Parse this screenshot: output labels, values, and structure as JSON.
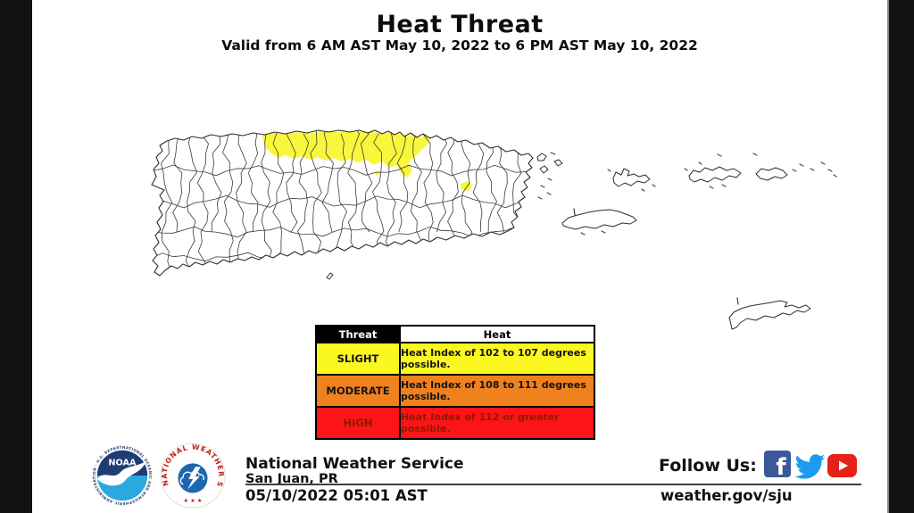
{
  "title": "Heat Threat",
  "subtitle": "Valid from 6 AM AST May 10, 2022 to 6 PM AST May 10, 2022",
  "legend": {
    "threat_header": "Threat",
    "heat_header": "Heat",
    "rows": [
      {
        "label": "SLIGHT",
        "text": "Heat Index of 102 to 107 degrees possible.",
        "bg": "#FBF821",
        "fg": "#141414"
      },
      {
        "label": "MODERATE",
        "text": "Heat Index of 108 to 111 degrees possible.",
        "bg": "#F0811F",
        "fg": "#141414"
      },
      {
        "label": "HIGH",
        "text": "Heat Index of 112 or greater possible.",
        "bg": "#FB1418",
        "fg": "#8F1A00"
      }
    ]
  },
  "map": {
    "slight_color": "#F8F73C",
    "outline_color": "#2E2E2E"
  },
  "footer": {
    "agency": "National Weather Service",
    "office": "San Juan, PR",
    "timestamp": "05/10/2022 05:01 AST",
    "follow_label": "Follow Us:",
    "website": "weather.gov/sju",
    "noaa_label": "NOAA",
    "noaa_ring_text": "NATIONAL OCEANIC AND ATMOSPHERIC ADMINISTRATION · U.S. DEPARTMENT OF COMMERCE",
    "nws_ring_text": "NATIONAL WEATHER SERVICE",
    "nws_stars": "★ ★ ★",
    "social": {
      "facebook_glyph": "f",
      "facebook_color": "#3B5998",
      "twitter_color": "#1D9BF0",
      "youtube_color": "#E62117"
    }
  }
}
